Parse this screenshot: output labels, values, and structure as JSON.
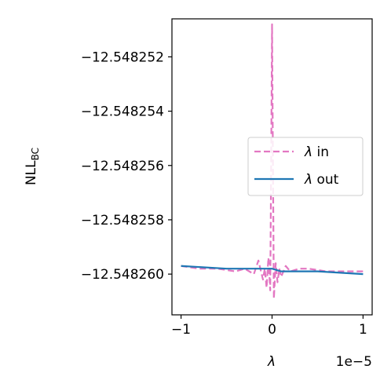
{
  "chart_data": {
    "type": "line",
    "ylabel_main": "NLL",
    "ylabel_sub": "BC",
    "xlabel": "λ",
    "x_scale_label": "1e−5",
    "xlim": [
      -1.1,
      1.1
    ],
    "ylim": [
      -12.5482615,
      -12.5482506
    ],
    "x_ticks": [
      -1,
      0,
      1
    ],
    "x_tick_labels": [
      "−1",
      "0",
      "1"
    ],
    "y_ticks": [
      -12.548252,
      -12.548254,
      -12.548256,
      -12.548258,
      -12.54826
    ],
    "y_tick_labels": [
      "−12.548252",
      "−12.548254",
      "−12.548256",
      "−12.548258",
      "−12.548260"
    ],
    "legend": {
      "position": "center-right",
      "entries": [
        {
          "label_var": "λ",
          "label_suffix": " in",
          "color": "#e377c2",
          "style": "dashed"
        },
        {
          "label_var": "λ",
          "label_suffix": " out",
          "color": "#1f77b4",
          "style": "solid"
        }
      ]
    },
    "series": [
      {
        "name": "λ in",
        "color": "#e377c2",
        "style": "dashed",
        "x": [
          -1.0,
          -0.8,
          -0.6,
          -0.4,
          -0.3,
          -0.2,
          -0.15,
          -0.1,
          -0.08,
          -0.06,
          -0.04,
          -0.02,
          -0.01,
          0.0,
          0.01,
          0.02,
          0.04,
          0.06,
          0.08,
          0.1,
          0.15,
          0.2,
          0.3,
          0.4,
          0.6,
          0.8,
          1.0
        ],
        "y": [
          -12.5482597,
          -12.5482598,
          -12.5482598,
          -12.5482599,
          -12.5482598,
          -12.54826,
          -12.5482595,
          -12.5482602,
          -12.5482598,
          -12.5482605,
          -12.5482594,
          -12.5482606,
          -12.548256,
          -12.5482508,
          -12.548256,
          -12.5482609,
          -12.5482596,
          -12.5482603,
          -12.5482598,
          -12.5482601,
          -12.5482597,
          -12.5482599,
          -12.5482598,
          -12.5482598,
          -12.5482599,
          -12.5482599,
          -12.5482599
        ]
      },
      {
        "name": "λ out",
        "color": "#1f77b4",
        "style": "solid",
        "x": [
          -1.0,
          -0.5,
          -0.1,
          0.0,
          0.1,
          0.5,
          1.0
        ],
        "y": [
          -12.5482597,
          -12.5482598,
          -12.5482598,
          -12.5482598,
          -12.5482599,
          -12.5482599,
          -12.54826
        ]
      }
    ]
  },
  "colors": {
    "axes": "#000000",
    "in_series": "#e377c2",
    "out_series": "#1f77b4"
  }
}
